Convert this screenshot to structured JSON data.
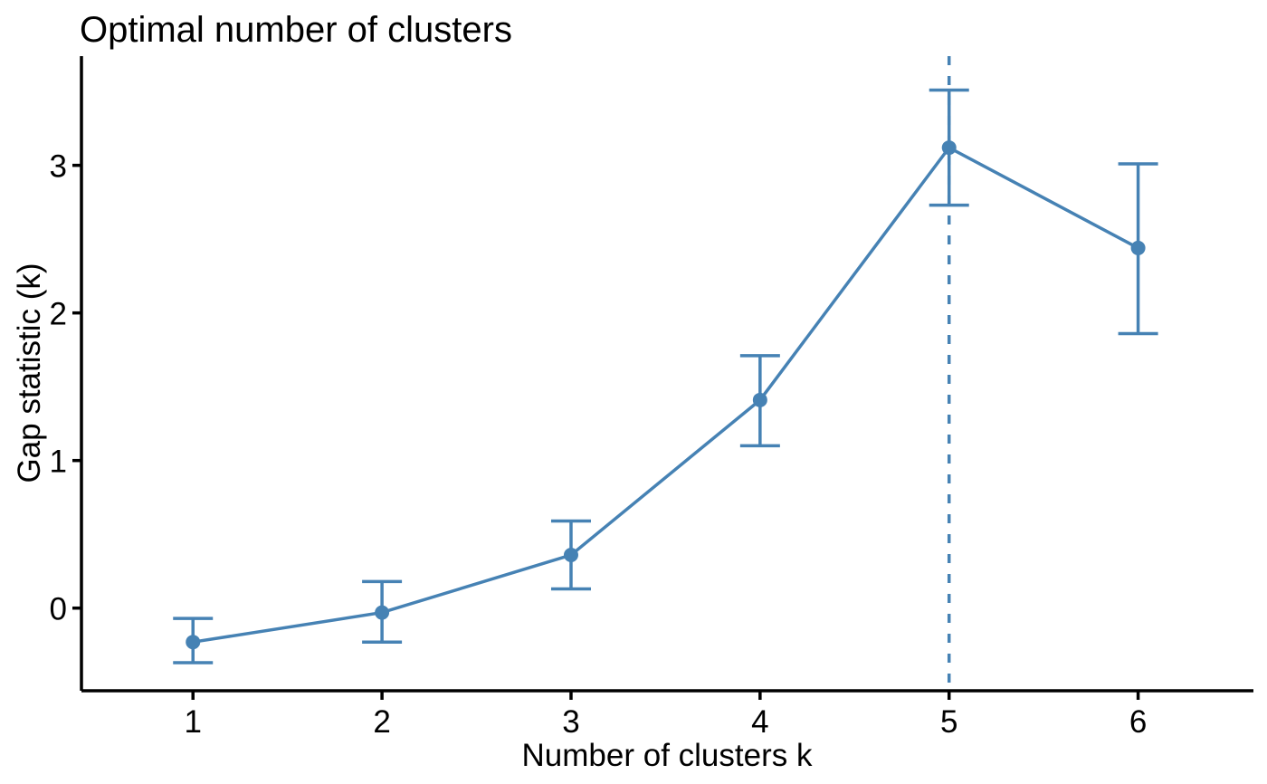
{
  "chart_data": {
    "type": "line",
    "title": "Optimal number of clusters",
    "xlabel": "Number of clusters k",
    "ylabel": "Gap statistic (k)",
    "x": [
      1,
      2,
      3,
      4,
      5,
      6
    ],
    "series": [
      {
        "name": "gap-statistic",
        "values": [
          -0.23,
          -0.03,
          0.36,
          1.41,
          3.12,
          2.44
        ],
        "ymin": [
          -0.37,
          -0.23,
          0.13,
          1.1,
          2.73,
          1.86
        ],
        "ymax": [
          -0.07,
          0.18,
          0.59,
          1.71,
          3.51,
          3.01
        ]
      }
    ],
    "x_ticks": [
      "1",
      "2",
      "3",
      "4",
      "5",
      "6"
    ],
    "x_tick_values": [
      1,
      2,
      3,
      4,
      5,
      6
    ],
    "y_ticks": [
      "0",
      "1",
      "2",
      "3"
    ],
    "y_tick_values": [
      0,
      1,
      2,
      3
    ],
    "xlim": [
      0.41,
      6.61
    ],
    "ylim": [
      -0.56,
      3.74
    ],
    "vline_x": 5,
    "optimal_k": 5,
    "grid": false,
    "legend": "none",
    "marker": "circle",
    "error_bars": true,
    "colors": {
      "series": "#4682B4",
      "axis": "#000000",
      "text": "#000000",
      "background": "#FFFFFF"
    },
    "line_styles": {
      "series": "solid",
      "vline": "dashed"
    }
  }
}
